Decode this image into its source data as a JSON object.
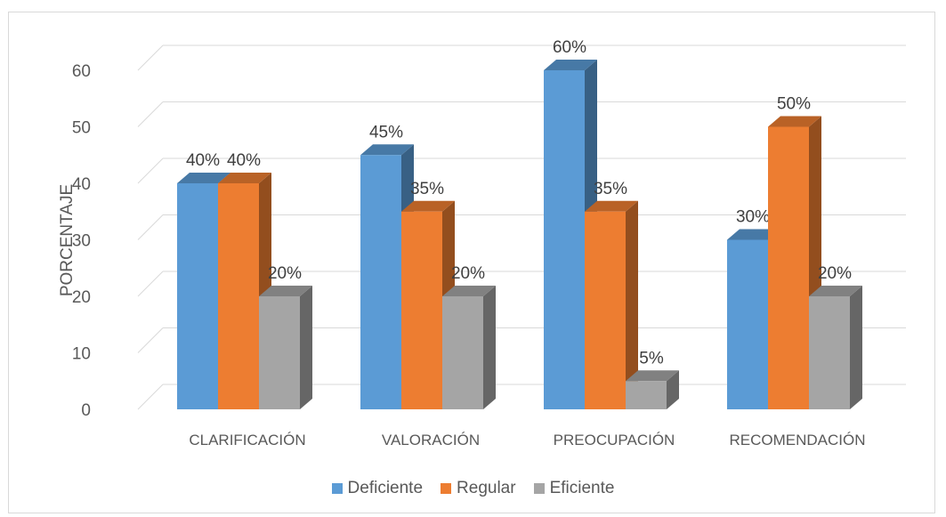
{
  "chart_data": {
    "type": "bar",
    "ylabel": "PORCENTAJE",
    "ylim": [
      0,
      60
    ],
    "yticks": [
      "0",
      "10",
      "20",
      "30",
      "40",
      "50",
      "60"
    ],
    "categories": [
      "CLARIFICACIÓN",
      "VALORACIÓN",
      "PREOCUPACIÓN",
      "RECOMENDACIÓN"
    ],
    "series": [
      {
        "name": "Deficiente",
        "values": [
          40,
          45,
          60,
          30
        ],
        "labels": [
          "40%",
          "45%",
          "60%",
          "30%"
        ],
        "color": "#5b9bd5"
      },
      {
        "name": "Regular",
        "values": [
          40,
          35,
          35,
          50
        ],
        "labels": [
          "40%",
          "35%",
          "35%",
          "50%"
        ],
        "color": "#ed7d31"
      },
      {
        "name": "Eficiente",
        "values": [
          20,
          20,
          5,
          20
        ],
        "labels": [
          "20%",
          "20%",
          "5%",
          "20%"
        ],
        "color": "#a5a5a5"
      }
    ],
    "grid": true,
    "legend_position": "bottom",
    "style": "3d-clustered-column"
  }
}
